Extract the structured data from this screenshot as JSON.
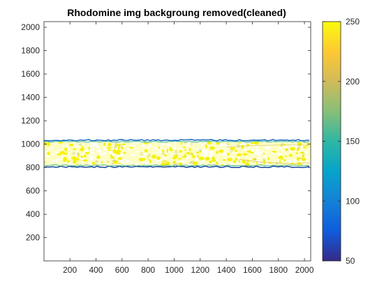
{
  "chart_data": {
    "type": "heatmap",
    "title": "Rhodomine img backgroung removed(cleaned)",
    "xlabel": "",
    "ylabel": "",
    "xlim": [
      1,
      2048
    ],
    "ylim": [
      1,
      2048
    ],
    "x_ticks": [
      200,
      400,
      600,
      800,
      1000,
      1200,
      1400,
      1600,
      1800,
      2000
    ],
    "y_ticks": [
      200,
      400,
      600,
      800,
      1000,
      1200,
      1400,
      1600,
      1800,
      2000
    ],
    "band": {
      "y_min": 800,
      "y_max": 1040,
      "x_min": 1,
      "x_max": 2048
    },
    "colorbar": {
      "position": "right",
      "clim": [
        50,
        250
      ],
      "ticks": [
        50,
        100,
        150,
        200,
        250
      ],
      "colormap": "parula",
      "colors": [
        "#352a87",
        "#0f5cdd",
        "#1481d6",
        "#06a4ca",
        "#2eb7a4",
        "#87bf77",
        "#d1bb59",
        "#fec832",
        "#f9fb0e"
      ]
    },
    "grid": false
  }
}
